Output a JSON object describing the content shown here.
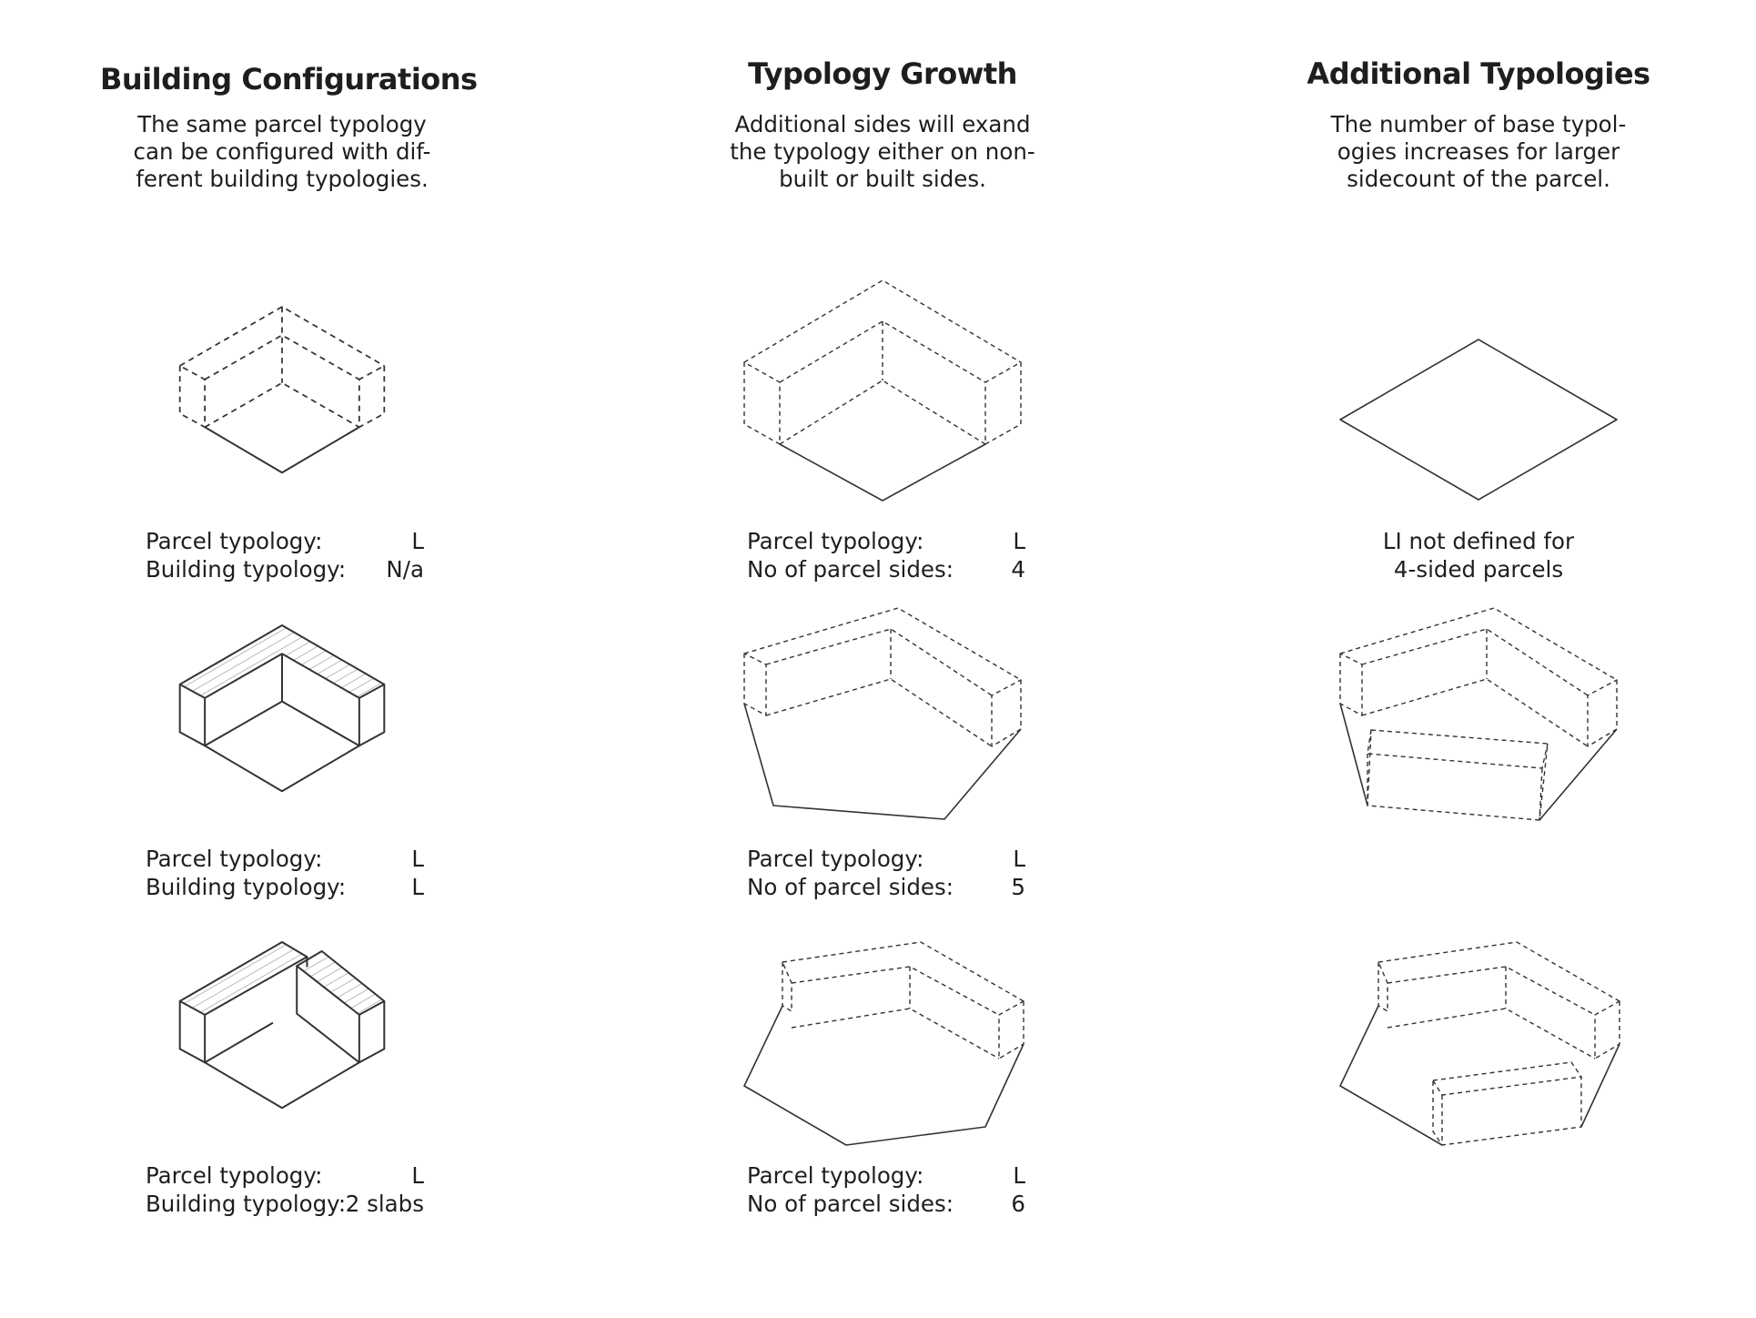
{
  "columns": [
    {
      "title": "Building Configurations",
      "description": [
        "The same parcel typology",
        "can be configured with dif-",
        "ferent building typologies."
      ]
    },
    {
      "title": "Typology Growth",
      "description": [
        "Additional sides will exand",
        "the typology either on non-",
        "built or built sides."
      ]
    },
    {
      "title": "Additional Typologies",
      "description": [
        "The number of base typol-",
        "ogies increases for larger",
        "sidecount of the parcel."
      ]
    }
  ],
  "configurations": [
    {
      "parcel_label": "Parcel typology:",
      "parcel_value": "L",
      "building_label": "Building typology:",
      "building_value": "N/a"
    },
    {
      "parcel_label": "Parcel typology:",
      "parcel_value": "L",
      "building_label": "Building typology:",
      "building_value": "L"
    },
    {
      "parcel_label": "Parcel typology:",
      "parcel_value": "L",
      "building_label": "Building typology:",
      "building_value": "2 slabs"
    }
  ],
  "growth": [
    {
      "parcel_label": "Parcel typology:",
      "parcel_value": "L",
      "sides_label": "No of parcel sides:",
      "sides_value": "4"
    },
    {
      "parcel_label": "Parcel typology:",
      "parcel_value": "L",
      "sides_label": "No of parcel sides:",
      "sides_value": "5"
    },
    {
      "parcel_label": "Parcel typology:",
      "parcel_value": "L",
      "sides_label": "No of parcel sides:",
      "sides_value": "6"
    }
  ],
  "additional": {
    "note": [
      "LI not defined for",
      "4-sided parcels"
    ]
  }
}
